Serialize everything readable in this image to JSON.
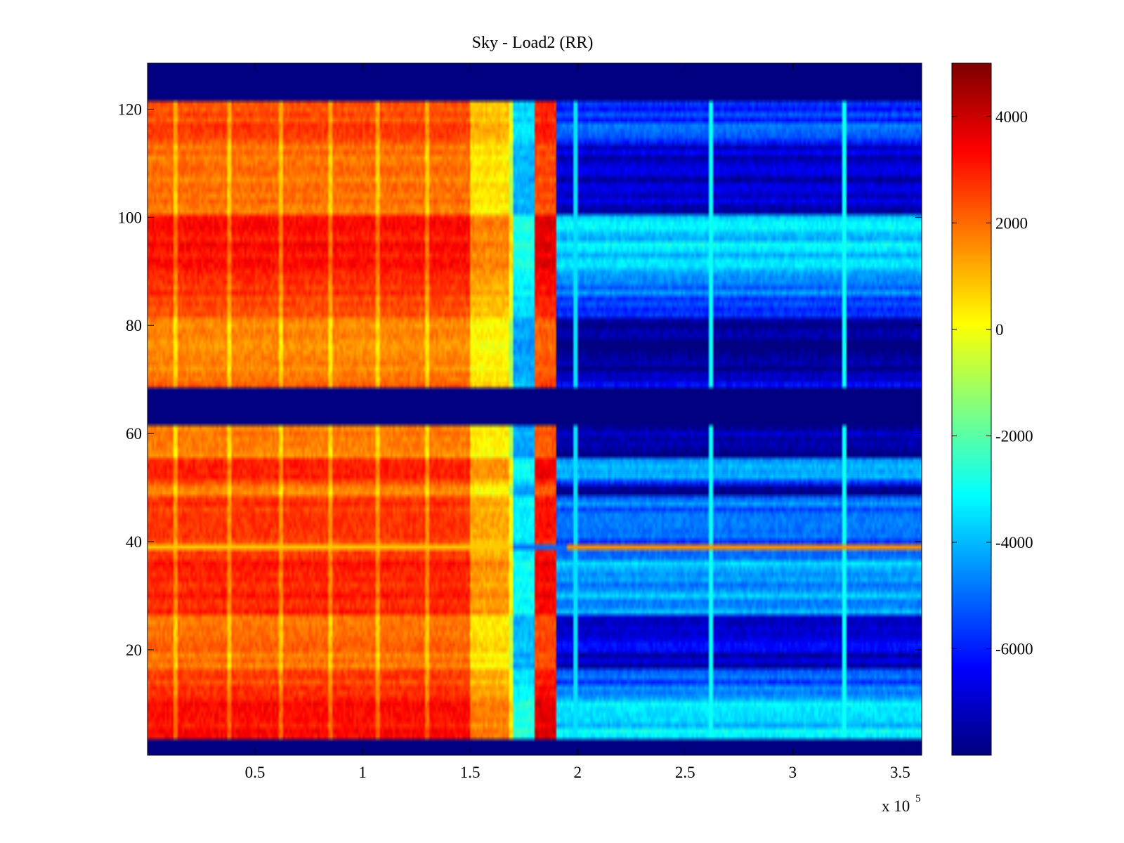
{
  "chart_data": {
    "type": "heatmap",
    "title": "Sky - Load2 (RR)",
    "xlabel": "",
    "ylabel": "",
    "xlim": [
      0,
      360000
    ],
    "ylim": [
      0.5,
      128.5
    ],
    "x_scale_label": "x 10",
    "x_scale_exponent": "5",
    "x_ticks": [
      {
        "value": 50000,
        "label": "0.5"
      },
      {
        "value": 100000,
        "label": "1"
      },
      {
        "value": 150000,
        "label": "1.5"
      },
      {
        "value": 200000,
        "label": "2"
      },
      {
        "value": 250000,
        "label": "2.5"
      },
      {
        "value": 300000,
        "label": "3"
      },
      {
        "value": 350000,
        "label": "3.5"
      }
    ],
    "y_ticks": [
      {
        "value": 20,
        "label": "20"
      },
      {
        "value": 40,
        "label": "40"
      },
      {
        "value": 60,
        "label": "60"
      },
      {
        "value": 80,
        "label": "80"
      },
      {
        "value": 100,
        "label": "100"
      },
      {
        "value": 120,
        "label": "120"
      }
    ],
    "colorbar": {
      "colormap": "jet",
      "clim": [
        -8000,
        5000
      ],
      "ticks": [
        {
          "value": 4000,
          "label": "4000"
        },
        {
          "value": 2000,
          "label": "2000"
        },
        {
          "value": 0,
          "label": "0"
        },
        {
          "value": -2000,
          "label": "-2000"
        },
        {
          "value": -4000,
          "label": "-4000"
        },
        {
          "value": -6000,
          "label": "-6000"
        }
      ]
    },
    "masked_rows": [
      {
        "from": 0.5,
        "to": 3.5,
        "value": -8000
      },
      {
        "from": 62,
        "to": 68,
        "value": -8000
      },
      {
        "from": 121.5,
        "to": 128.5,
        "value": -8000
      }
    ],
    "column_bands": [
      {
        "x_from": 0,
        "x_to": 150000,
        "value": 2500
      },
      {
        "x_from": 150000,
        "x_to": 170000,
        "value": 1000
      },
      {
        "x_from": 170000,
        "x_to": 180000,
        "value": -3500
      },
      {
        "x_from": 180000,
        "x_to": 190000,
        "value": 3000
      },
      {
        "x_from": 190000,
        "x_to": 360000,
        "value": -5500
      }
    ],
    "row_offsets": [
      {
        "y_from": 3.5,
        "y_to": 12,
        "offset": 1200
      },
      {
        "y_from": 12,
        "y_to": 17,
        "offset": 200
      },
      {
        "y_from": 17,
        "y_to": 20,
        "offset": -1200
      },
      {
        "y_from": 20,
        "y_to": 27,
        "offset": -900
      },
      {
        "y_from": 27,
        "y_to": 38,
        "offset": 800
      },
      {
        "y_from": 42,
        "y_to": 48,
        "offset": 300
      },
      {
        "y_from": 49,
        "y_to": 51,
        "offset": -1500
      },
      {
        "y_from": 52,
        "y_to": 56,
        "offset": 700
      },
      {
        "y_from": 56,
        "y_to": 62,
        "offset": -1300
      },
      {
        "y_from": 68,
        "y_to": 72,
        "offset": -700
      },
      {
        "y_from": 72,
        "y_to": 82,
        "offset": -1500
      },
      {
        "y_from": 82,
        "y_to": 86,
        "offset": -300
      },
      {
        "y_from": 86,
        "y_to": 90,
        "offset": 300
      },
      {
        "y_from": 90,
        "y_to": 101,
        "offset": 1200
      },
      {
        "y_from": 101,
        "y_to": 114,
        "offset": -1000
      },
      {
        "y_from": 114,
        "y_to": 121.5,
        "offset": 0
      }
    ],
    "highlight_rows": [
      {
        "y": 39,
        "left_value": 800,
        "right_value": 1500
      }
    ],
    "vertical_lines": [
      {
        "x": 13000,
        "value": 1500
      },
      {
        "x": 38000,
        "value": 1500
      },
      {
        "x": 62000,
        "value": 1500
      },
      {
        "x": 85000,
        "value": 1500
      },
      {
        "x": 107000,
        "value": 1500
      },
      {
        "x": 130000,
        "value": 1500
      },
      {
        "x": 169000,
        "value": 2500
      },
      {
        "x": 199000,
        "value": -3500
      },
      {
        "x": 262000,
        "value": -3000
      },
      {
        "x": 324000,
        "value": -3000
      }
    ]
  }
}
